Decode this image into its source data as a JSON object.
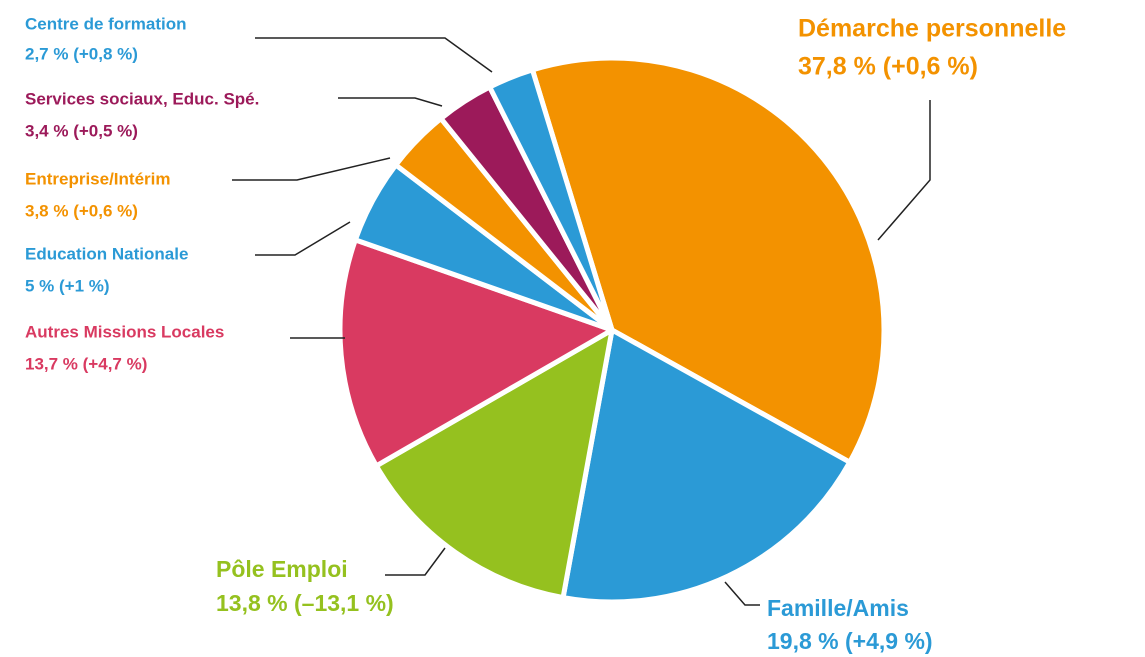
{
  "chart_data": {
    "type": "pie",
    "categories": [
      "Démarche personnelle",
      "Famille/Amis",
      "Pôle Emploi",
      "Autres Missions Locales",
      "Education Nationale",
      "Entreprise/Intérim",
      "Services sociaux, Educ. Spé.",
      "Centre de formation"
    ],
    "values": [
      37.8,
      19.8,
      13.8,
      13.7,
      5,
      3.8,
      3.4,
      2.7
    ],
    "value_labels": [
      "37,8 % (+0,6 %)",
      "19,8 % (+4,9 %)",
      "13,8 % (–13,1 %)",
      "13,7 % (+4,7 %)",
      "5 % (+1 %)",
      "3,8 % (+0,6 %)",
      "3,4 % (+0,5 %)",
      "2,7 % (+0,8 %)"
    ],
    "colors": [
      "#f39200",
      "#2b9ad6",
      "#95c11f",
      "#d93a61",
      "#2b9ad6",
      "#f39200",
      "#9c1a5a",
      "#2b9ad6"
    ]
  }
}
